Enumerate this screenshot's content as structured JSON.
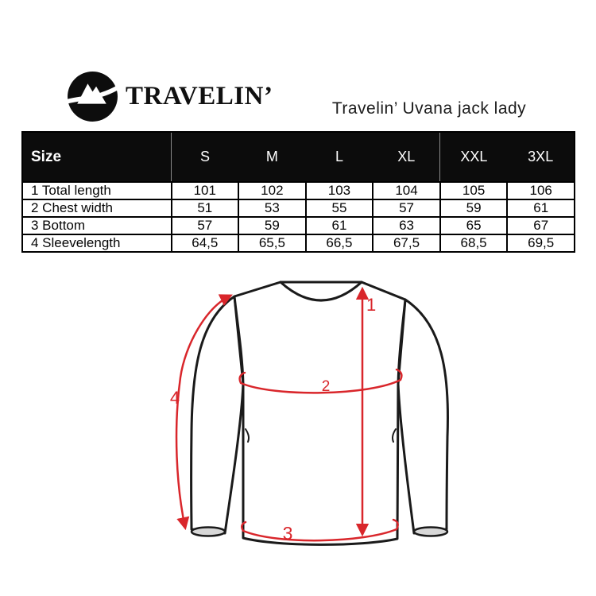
{
  "brand": {
    "logo_text": "TRAVELIN’",
    "logo_icon": "mountain-road-badge-icon"
  },
  "product_title": "Travelin’  Uvana jack lady",
  "size_chart": {
    "header": [
      "Size",
      "S",
      "M",
      "L",
      "XL",
      "XXL",
      "3XL"
    ],
    "rows": [
      {
        "label": "1 Total length",
        "values": [
          "101",
          "102",
          "103",
          "104",
          "105",
          "106"
        ]
      },
      {
        "label": "2 Chest width",
        "values": [
          "51",
          "53",
          "55",
          "57",
          "59",
          "61"
        ]
      },
      {
        "label": "3 Bottom",
        "values": [
          "57",
          "59",
          "61",
          "63",
          "65",
          "67"
        ]
      },
      {
        "label": "4 Sleevelength",
        "values": [
          "64,5",
          "65,5",
          "66,5",
          "67,5",
          "68,5",
          "69,5"
        ]
      }
    ]
  },
  "diagram": {
    "subject": "long-sleeve-jacket-front-outline",
    "markers": {
      "total_length": "1",
      "chest_width": "2",
      "bottom": "3",
      "sleeve_length": "4"
    },
    "accent_color": "#d9262b",
    "outline_color": "#1a1a1a"
  }
}
